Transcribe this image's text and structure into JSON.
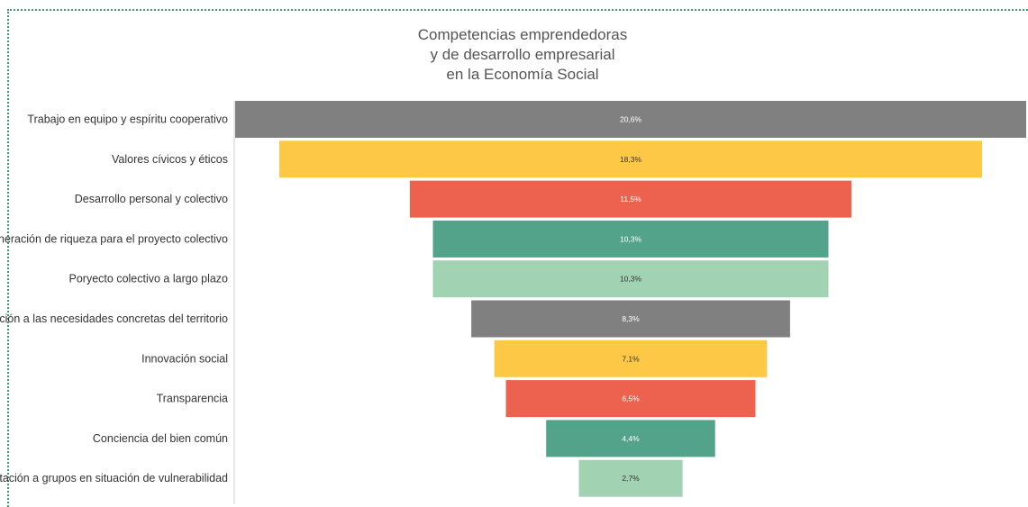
{
  "chart_data": {
    "type": "bar",
    "title_lines": [
      "Competencias emprendedoras",
      "y de desarrollo empresarial",
      "en la Economía Social"
    ],
    "categories": [
      "Trabajo en equipo y espíritu cooperativo",
      "Valores cívicos y éticos",
      "Desarrollo personal y colectivo",
      "Generación de riqueza para el proyecto colectivo",
      "Poryecto colectivo a largo plazo",
      "Atención a las necesidades concretas del territorio",
      "Innovación social",
      "Transparencia",
      "Conciencia del bien común",
      "Orientación a grupos en situación de vulnerabilidad"
    ],
    "values": [
      20.6,
      18.3,
      11.5,
      10.3,
      10.3,
      8.3,
      7.1,
      6.5,
      4.4,
      2.7
    ],
    "value_labels": [
      "20,6%",
      "18,3%",
      "11,5%",
      "10,3%",
      "10,3%",
      "8,3%",
      "7,1%",
      "6,5%",
      "4,4%",
      "2,7%"
    ],
    "colors": [
      "#808080",
      "#fdc845",
      "#ed624e",
      "#52a38a",
      "#a1d3b3",
      "#808080",
      "#fdc845",
      "#ed624e",
      "#52a38a",
      "#a1d3b3"
    ],
    "value_label_colors": [
      "#ffffff",
      "#333333",
      "#ffffff",
      "#ffffff",
      "#333333",
      "#ffffff",
      "#333333",
      "#ffffff",
      "#ffffff",
      "#333333"
    ],
    "style": "funnel"
  }
}
